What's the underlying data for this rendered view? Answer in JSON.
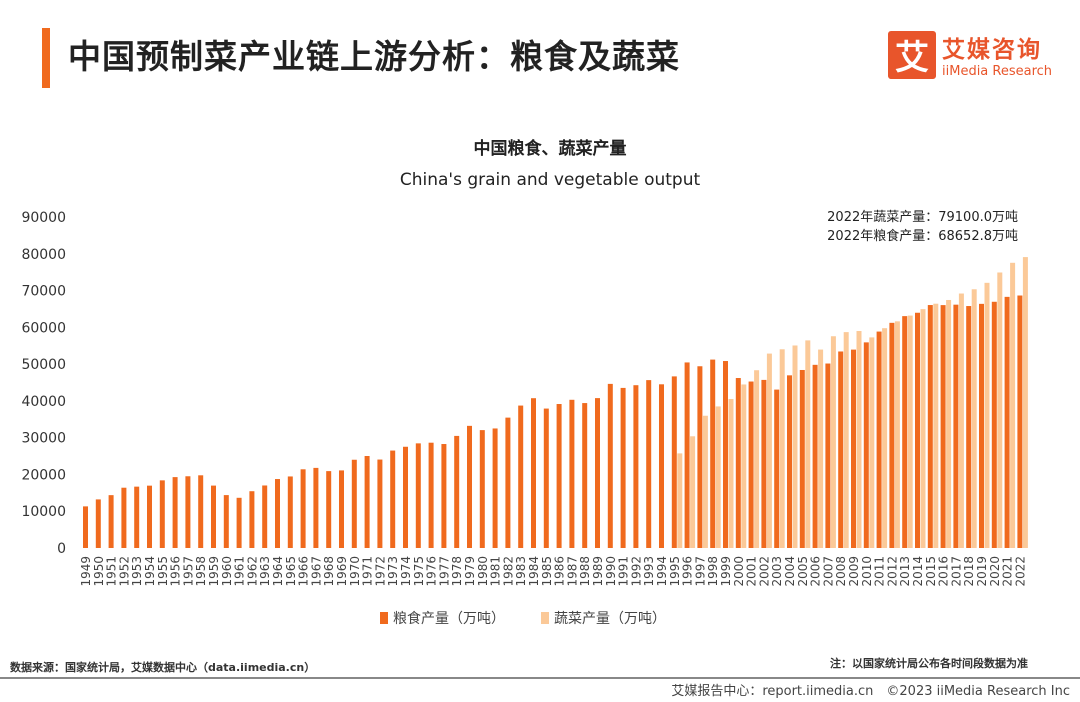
{
  "header": {
    "title": "中国预制菜产业链上游分析：粮食及蔬菜",
    "logo_mark": "艾",
    "logo_cn": "艾媒咨询",
    "logo_en": "iiMedia Research"
  },
  "annotations": [
    "2022年蔬菜产量：79100.0万吨",
    "2022年粮食产量：68652.8万吨"
  ],
  "source": "数据来源：国家统计局，艾媒数据中心（data.iimedia.cn）",
  "note": "注：以国家统计局公布各时间段数据为准",
  "footer": "艾媒报告中心：report.iimedia.cn　©2023  iiMedia Research Inc",
  "colors": {
    "grain": "#f06a1e",
    "vegetable": "#fbc998",
    "accent": "#f06a1e"
  },
  "chart_data": {
    "type": "bar",
    "title": "中国粮食、蔬菜产量",
    "subtitle": "China's grain and vegetable output",
    "ylim": [
      0,
      90000
    ],
    "yticks": [
      0,
      10000,
      20000,
      30000,
      40000,
      50000,
      60000,
      70000,
      80000,
      90000
    ],
    "categories": [
      "1949",
      "1950",
      "1951",
      "1952",
      "1953",
      "1954",
      "1955",
      "1956",
      "1957",
      "1958",
      "1959",
      "1960",
      "1961",
      "1962",
      "1963",
      "1964",
      "1965",
      "1966",
      "1967",
      "1968",
      "1969",
      "1970",
      "1971",
      "1972",
      "1973",
      "1974",
      "1975",
      "1976",
      "1977",
      "1978",
      "1979",
      "1980",
      "1981",
      "1982",
      "1983",
      "1984",
      "1985",
      "1986",
      "1987",
      "1988",
      "1989",
      "1990",
      "1991",
      "1992",
      "1993",
      "1994",
      "1995",
      "1996",
      "1997",
      "1998",
      "1999",
      "2000",
      "2001",
      "2002",
      "2003",
      "2004",
      "2005",
      "2006",
      "2007",
      "2008",
      "2009",
      "2010",
      "2011",
      "2012",
      "2013",
      "2014",
      "2015",
      "2016",
      "2017",
      "2018",
      "2019",
      "2020",
      "2021",
      "2022"
    ],
    "series": [
      {
        "name": "粮食产量（万吨）",
        "values": [
          11318,
          13213,
          14369,
          16392,
          16683,
          16952,
          18394,
          19275,
          19505,
          19765,
          16968,
          14385,
          13650,
          15441,
          17000,
          18750,
          19453,
          21400,
          21782,
          20906,
          21097,
          23996,
          25014,
          24048,
          26494,
          27527,
          28452,
          28631,
          28273,
          30477,
          33212,
          32056,
          32502,
          35450,
          38728,
          40731,
          37911,
          39151,
          40298,
          39408,
          40755,
          44624,
          43529,
          44266,
          45649,
          44510,
          46662,
          50454,
          49417,
          51230,
          50839,
          46218,
          45264,
          45706,
          43070,
          46947,
          48402,
          49804,
          50160,
          53434,
          53941,
          55911,
          58849,
          61223,
          63048,
          63965,
          66060,
          66044,
          66161,
          65789,
          66384,
          66949,
          68285,
          68653
        ]
      },
      {
        "name": "蔬菜产量（万吨）",
        "values": [
          null,
          null,
          null,
          null,
          null,
          null,
          null,
          null,
          null,
          null,
          null,
          null,
          null,
          null,
          null,
          null,
          null,
          null,
          null,
          null,
          null,
          null,
          null,
          null,
          null,
          null,
          null,
          null,
          null,
          null,
          null,
          null,
          null,
          null,
          null,
          null,
          null,
          null,
          null,
          null,
          null,
          null,
          null,
          null,
          null,
          null,
          25727,
          30379,
          35962,
          38492,
          40514,
          44468,
          48337,
          52860,
          54032,
          55065,
          56451,
          53953,
          57581,
          58700,
          59000,
          57265,
          59767,
          61625,
          63198,
          64949,
          66425,
          67434,
          69193,
          70347,
          72103,
          74913,
          77549,
          79100
        ]
      }
    ]
  }
}
